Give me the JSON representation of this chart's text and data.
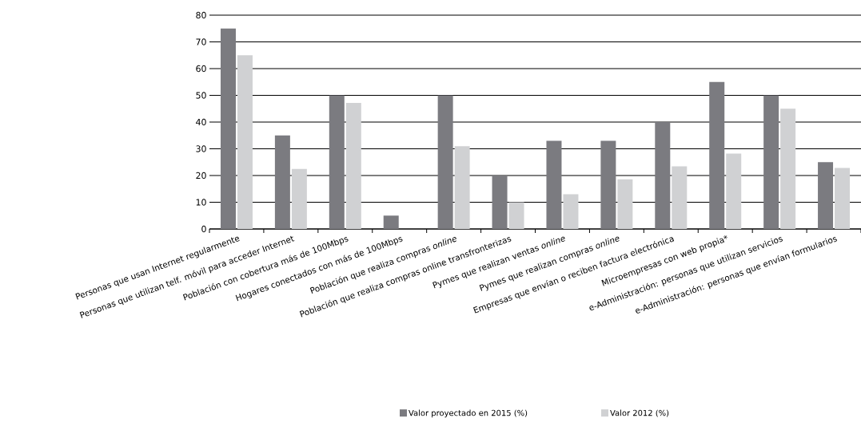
{
  "chart_data": {
    "type": "bar",
    "categories": [
      "Personas que usan Internet regularmente",
      "Personas que utilizan telf. móvil para acceder Internet",
      "Población con cobertura  más de 100Mbps",
      "Hogares conectados con más de 100Mbps",
      "Población que realiza compras *online*",
      "Población que realiza compras online transfronterizas",
      "Pymes que realizan ventas *online*",
      "Pymes que realizan compras *online*",
      "Empresas que envían o reciben factura electrónica",
      "Microempresas con web propia*",
      "e-Administración: personas  que utilizan servicios",
      "e-Administración: personas  que envían formularios"
    ],
    "series": [
      {
        "name": "Valor proyectado  en 2015 (%)",
        "color": "#7b7b80",
        "values": [
          75,
          35,
          50,
          5,
          50,
          20,
          33,
          33,
          40,
          55,
          50,
          25
        ]
      },
      {
        "name": "Valor 2012 (%)",
        "color": "#d0d1d3",
        "values": [
          65,
          22.5,
          47.2,
          0,
          31,
          10,
          13,
          18.6,
          23.4,
          28.2,
          45,
          22.8
        ]
      }
    ],
    "ylim": [
      0,
      80
    ],
    "yticks": [
      0,
      10,
      20,
      30,
      40,
      50,
      60,
      70,
      80
    ],
    "grid": "y",
    "legend": "bottom"
  }
}
